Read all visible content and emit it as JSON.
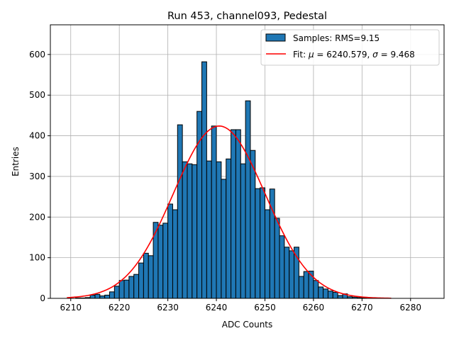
{
  "chart_data": {
    "type": "bar",
    "title": "Run 453, channel093, Pedestal",
    "xlabel": "ADC Counts",
    "ylabel": "Entries",
    "xlim": [
      6205.8,
      6286.9
    ],
    "ylim": [
      0,
      673
    ],
    "xticks": [
      6210,
      6220,
      6230,
      6240,
      6250,
      6260,
      6270,
      6280
    ],
    "yticks": [
      0,
      100,
      200,
      300,
      400,
      500,
      600
    ],
    "grid": true,
    "legend_position": "top-right",
    "bar_color": "#1f77b4",
    "fit_color": "#ff0000",
    "histogram": {
      "name": "Samples: RMS=9.15",
      "bin_width": 1,
      "bins": [
        6211,
        6212,
        6213,
        6214,
        6215,
        6216,
        6217,
        6218,
        6219,
        6220,
        6221,
        6222,
        6223,
        6224,
        6225,
        6226,
        6227,
        6228,
        6229,
        6230,
        6231,
        6232,
        6233,
        6234,
        6235,
        6236,
        6237,
        6238,
        6239,
        6240,
        6241,
        6242,
        6243,
        6244,
        6245,
        6246,
        6247,
        6248,
        6249,
        6250,
        6251,
        6252,
        6253,
        6254,
        6255,
        6256,
        6257,
        6258,
        6259,
        6260,
        6261,
        6262,
        6263,
        6264,
        6265,
        6266,
        6267,
        6268,
        6269,
        6270
      ],
      "counts": [
        1,
        1,
        2,
        8,
        10,
        6,
        8,
        16,
        30,
        44,
        45,
        54,
        59,
        87,
        111,
        105,
        187,
        180,
        185,
        232,
        218,
        427,
        336,
        331,
        329,
        460,
        582,
        338,
        424,
        336,
        293,
        343,
        415,
        415,
        331,
        486,
        364,
        270,
        272,
        218,
        269,
        197,
        154,
        126,
        117,
        126,
        54,
        66,
        67,
        44,
        28,
        23,
        18,
        15,
        7,
        11,
        4,
        3,
        2,
        1
      ]
    },
    "fit": {
      "name_prefix": "Fit: ",
      "mu_symbol": "μ",
      "mu_text": " = 6240.579, ",
      "sigma_symbol": "σ",
      "sigma_text": " = 9.468",
      "mu": 6240.579,
      "sigma": 9.468,
      "amplitude": 424,
      "x_range": [
        6209.2,
        6276
      ]
    }
  }
}
